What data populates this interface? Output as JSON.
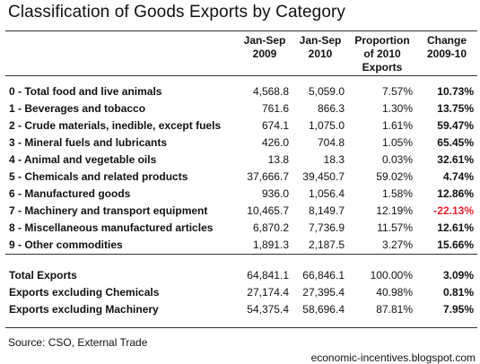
{
  "title": "Classification of Goods Exports by Category",
  "columns": [
    "",
    "Jan-Sep 2009",
    "Jan-Sep 2010",
    "Proportion of 2010 Exports",
    "Change 2009-10"
  ],
  "chart_data": {
    "type": "table",
    "title": "Classification of Goods Exports by Category",
    "columns": [
      "",
      "Jan-Sep 2009",
      "Jan-Sep 2010",
      "Proportion of 2010 Exports",
      "Change 2009-10"
    ],
    "rows": [
      {
        "label": "0 - Total food and live animals",
        "y2009": "4,568.8",
        "y2010": "5,059.0",
        "share": "7.57%",
        "change": "10.73%"
      },
      {
        "label": "1 - Beverages and tobacco",
        "y2009": "761.6",
        "y2010": "866.3",
        "share": "1.30%",
        "change": "13.75%"
      },
      {
        "label": "2 - Crude materials, inedible, except fuels",
        "y2009": "674.1",
        "y2010": "1,075.0",
        "share": "1.61%",
        "change": "59.47%"
      },
      {
        "label": "3 - Mineral fuels and lubricants",
        "y2009": "426.0",
        "y2010": "704.8",
        "share": "1.05%",
        "change": "65.45%"
      },
      {
        "label": "4 - Animal and vegetable oils",
        "y2009": "13.8",
        "y2010": "18.3",
        "share": "0.03%",
        "change": "32.61%"
      },
      {
        "label": "5 - Chemicals and related products",
        "y2009": "37,666.7",
        "y2010": "39,450.7",
        "share": "59.02%",
        "change": "4.74%"
      },
      {
        "label": "6 - Manufactured goods",
        "y2009": "936.0",
        "y2010": "1,056.4",
        "share": "1.58%",
        "change": "12.86%"
      },
      {
        "label": "7 - Machinery and transport equipment",
        "y2009": "10,465.7",
        "y2010": "8,149.7",
        "share": "12.19%",
        "change": "-22.13%"
      },
      {
        "label": "8 - Miscellaneous manufactured articles",
        "y2009": "6,870.2",
        "y2010": "7,736.9",
        "share": "11.57%",
        "change": "12.61%"
      },
      {
        "label": "9 - Other commodities",
        "y2009": "1,891.3",
        "y2010": "2,187.5",
        "share": "3.27%",
        "change": "15.66%"
      }
    ],
    "totals": [
      {
        "label": "Total Exports",
        "y2009": "64,841.1",
        "y2010": "66,846.1",
        "share": "100.00%",
        "change": "3.09%"
      },
      {
        "label": "Exports excluding Chemicals",
        "y2009": "27,174.4",
        "y2010": "27,395.4",
        "share": "40.98%",
        "change": "0.81%"
      },
      {
        "label": "Exports excluding Machinery",
        "y2009": "54,375.4",
        "y2010": "58,696.4",
        "share": "87.81%",
        "change": "7.95%"
      }
    ]
  },
  "colors": {
    "negative": "#e0202a",
    "rule": "#333333"
  },
  "source": "Source: CSO, External Trade",
  "blog": "economic-incentives.blogspot.com"
}
